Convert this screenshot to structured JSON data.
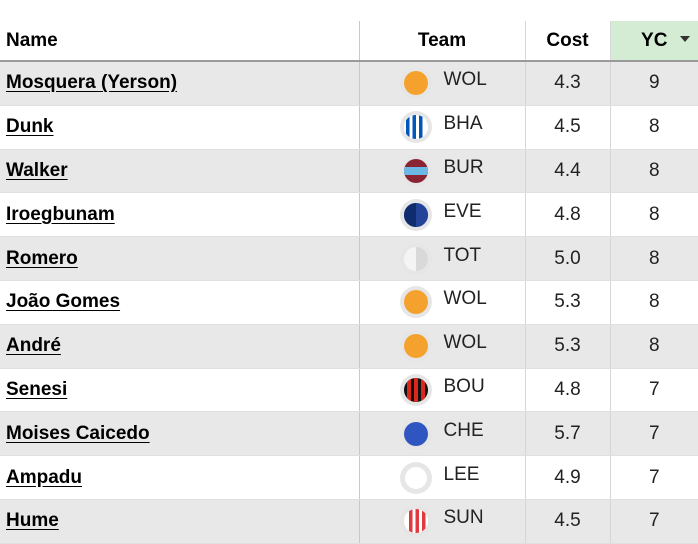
{
  "headers": {
    "name": "Name",
    "team": "Team",
    "cost": "Cost",
    "yc": "YC"
  },
  "rows": [
    {
      "name": "Mosquera (Yerson)",
      "team": "WOL",
      "crest": "wol",
      "cost": "4.3",
      "yc": "9"
    },
    {
      "name": "Dunk",
      "team": "BHA",
      "crest": "bha",
      "cost": "4.5",
      "yc": "8"
    },
    {
      "name": "Walker",
      "team": "BUR",
      "crest": "bur",
      "cost": "4.4",
      "yc": "8"
    },
    {
      "name": "Iroegbunam",
      "team": "EVE",
      "crest": "eve",
      "cost": "4.8",
      "yc": "8"
    },
    {
      "name": "Romero",
      "team": "TOT",
      "crest": "tot",
      "cost": "5.0",
      "yc": "8"
    },
    {
      "name": "João Gomes",
      "team": "WOL",
      "crest": "wol",
      "cost": "5.3",
      "yc": "8"
    },
    {
      "name": "André",
      "team": "WOL",
      "crest": "wol",
      "cost": "5.3",
      "yc": "8"
    },
    {
      "name": "Senesi",
      "team": "BOU",
      "crest": "bou",
      "cost": "4.8",
      "yc": "7"
    },
    {
      "name": "Moises Caicedo",
      "team": "CHE",
      "crest": "che",
      "cost": "5.7",
      "yc": "7"
    },
    {
      "name": "Ampadu",
      "team": "LEE",
      "crest": "lee",
      "cost": "4.9",
      "yc": "7"
    },
    {
      "name": "Hume",
      "team": "SUN",
      "crest": "sun",
      "cost": "4.5",
      "yc": "7"
    }
  ],
  "colors": {
    "sorted_header_bg": "#d4ecd4",
    "row_alt_bg": "#e8e8e8"
  }
}
